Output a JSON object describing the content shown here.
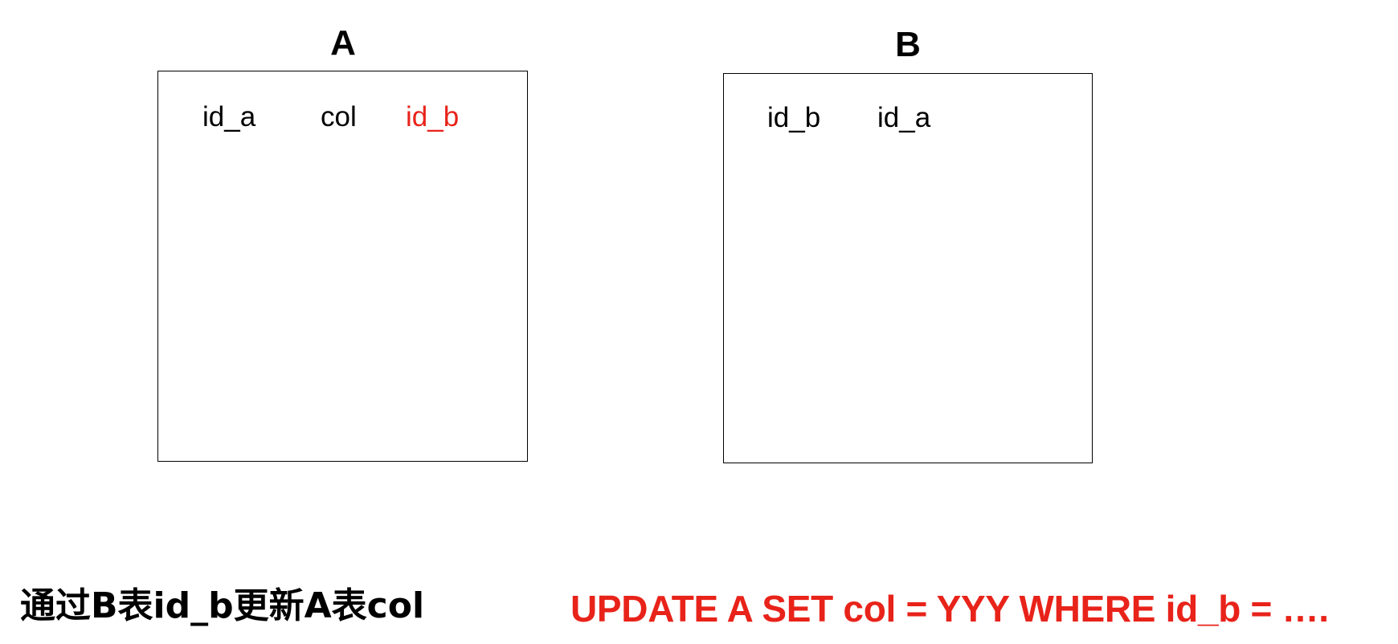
{
  "tables": [
    {
      "title": "A",
      "columns": [
        {
          "label": "id_a",
          "color": "#000000"
        },
        {
          "label": "col",
          "color": "#000000"
        },
        {
          "label": "id_b",
          "color": "#e8231a"
        }
      ]
    },
    {
      "title": "B",
      "columns": [
        {
          "label": "id_b",
          "color": "#000000"
        },
        {
          "label": "id_a",
          "color": "#000000"
        }
      ]
    }
  ],
  "captions": {
    "description": "通过B表id_b更新A表col",
    "sql": "UPDATE A SET col = YYY WHERE id_b = …."
  },
  "colors": {
    "highlight": "#e8231a",
    "text": "#000000",
    "border": "#000000"
  }
}
